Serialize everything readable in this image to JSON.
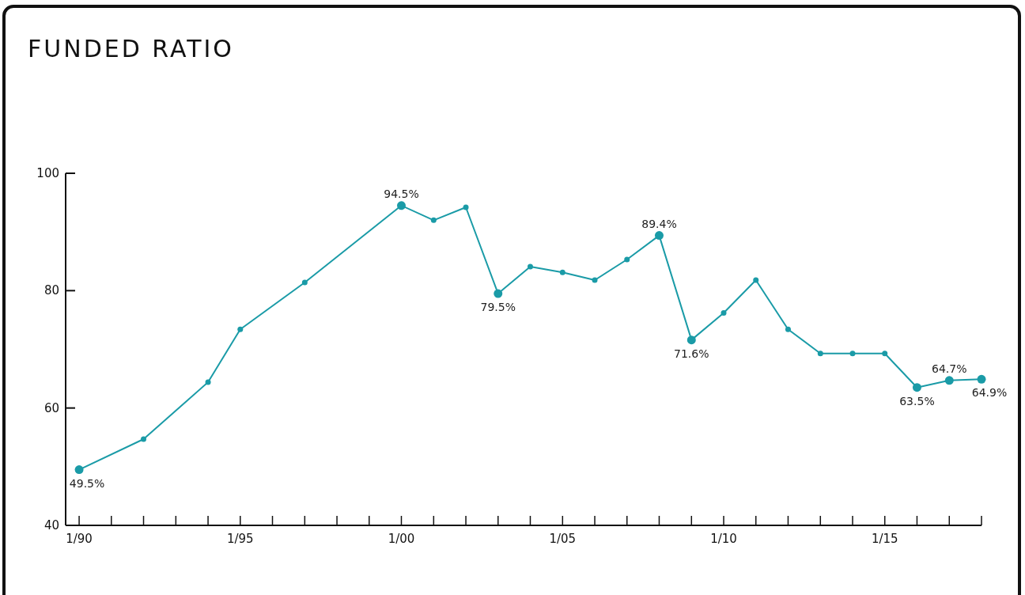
{
  "chart_data": {
    "type": "line",
    "title": "FUNDED RATIO",
    "x": [
      "1990-01",
      "1992-01",
      "1994-01",
      "1995-01",
      "1997-01",
      "2000-01",
      "2001-01",
      "2002-01",
      "2003-01",
      "2004-01",
      "2005-01",
      "2006-01",
      "2007-01",
      "2008-01",
      "2009-01",
      "2010-01",
      "2011-01",
      "2012-01",
      "2013-01",
      "2014-01",
      "2015-01",
      "2016-01",
      "2017-01",
      "2018-01"
    ],
    "series": [
      {
        "color": "#1a9ba7",
        "values": [
          49.5,
          54.7,
          64.4,
          73.4,
          81.4,
          94.5,
          92.0,
          94.2,
          79.5,
          84.1,
          83.1,
          81.8,
          85.3,
          89.4,
          71.6,
          76.2,
          81.8,
          73.4,
          69.3,
          69.3,
          69.3,
          63.5,
          64.7,
          64.9
        ],
        "value_labels": [
          "49.5%",
          null,
          null,
          null,
          null,
          "94.5%",
          null,
          null,
          "79.5%",
          null,
          null,
          null,
          null,
          "89.4%",
          "71.6%",
          null,
          null,
          null,
          null,
          null,
          null,
          "63.5%",
          "64.7%",
          "64.9%"
        ]
      }
    ],
    "xlim": [
      "1989-08",
      "2018-01"
    ],
    "xticks": [
      {
        "value": "1990-01",
        "label": "1/90"
      },
      {
        "value": "1991-01",
        "label": null
      },
      {
        "value": "1992-01",
        "label": null
      },
      {
        "value": "1993-01",
        "label": null
      },
      {
        "value": "1994-01",
        "label": null
      },
      {
        "value": "1995-01",
        "label": "1/95"
      },
      {
        "value": "1996-01",
        "label": null
      },
      {
        "value": "1997-01",
        "label": null
      },
      {
        "value": "1998-01",
        "label": null
      },
      {
        "value": "1999-01",
        "label": null
      },
      {
        "value": "2000-01",
        "label": "1/00"
      },
      {
        "value": "2001-01",
        "label": null
      },
      {
        "value": "2002-01",
        "label": null
      },
      {
        "value": "2003-01",
        "label": null
      },
      {
        "value": "2004-01",
        "label": null
      },
      {
        "value": "2005-01",
        "label": "1/05"
      },
      {
        "value": "2006-01",
        "label": null
      },
      {
        "value": "2007-01",
        "label": null
      },
      {
        "value": "2008-01",
        "label": null
      },
      {
        "value": "2009-01",
        "label": null
      },
      {
        "value": "2010-01",
        "label": "1/10"
      },
      {
        "value": "2011-01",
        "label": null
      },
      {
        "value": "2012-01",
        "label": null
      },
      {
        "value": "2013-01",
        "label": null
      },
      {
        "value": "2014-01",
        "label": null
      },
      {
        "value": "2015-01",
        "label": "1/15"
      },
      {
        "value": "2016-01",
        "label": null
      },
      {
        "value": "2017-01",
        "label": null
      },
      {
        "value": "2018-01",
        "label": null
      }
    ],
    "ylim": [
      40,
      100
    ],
    "yticks": [
      40,
      60,
      80,
      100
    ],
    "marker": "circle"
  }
}
